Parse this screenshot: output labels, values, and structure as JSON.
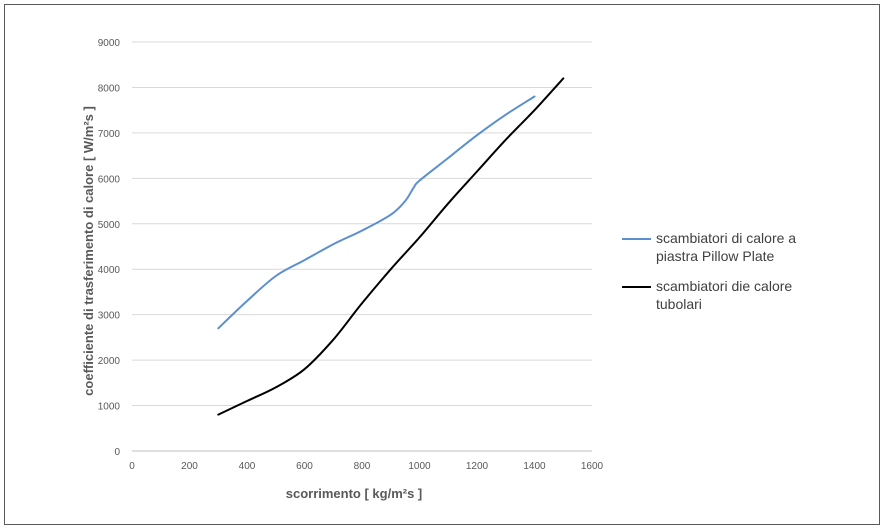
{
  "chart_data": {
    "type": "line",
    "title": "",
    "xlabel": "scorrimento [ kg/m²s ]",
    "ylabel": "coefficiente di trasferimento di calore [ W/m²s ]",
    "xlim": [
      0,
      1600
    ],
    "ylim": [
      0,
      9000
    ],
    "x_ticks": [
      0,
      200,
      400,
      600,
      800,
      1000,
      1200,
      1400,
      1600
    ],
    "y_ticks": [
      0,
      1000,
      2000,
      3000,
      4000,
      5000,
      6000,
      7000,
      8000,
      9000
    ],
    "grid": "horizontal",
    "legend_position": "right",
    "series": [
      {
        "name_lines": [
          "scambiatori di calore a",
          "piastra Pillow Plate"
        ],
        "color": "#5b8fd0",
        "x": [
          300,
          400,
          500,
          600,
          700,
          800,
          900,
          950,
          980,
          1000,
          1100,
          1200,
          1300,
          1400
        ],
        "y": [
          2700,
          3300,
          3850,
          4200,
          4550,
          4850,
          5200,
          5500,
          5800,
          5950,
          6450,
          6950,
          7400,
          7800
        ]
      },
      {
        "name_lines": [
          "scambiatori die calore",
          "tubolari"
        ],
        "color": "#000000",
        "x": [
          300,
          400,
          500,
          600,
          700,
          800,
          900,
          1000,
          1100,
          1200,
          1300,
          1400,
          1500
        ],
        "y": [
          800,
          1100,
          1400,
          1800,
          2450,
          3250,
          4000,
          4700,
          5450,
          6150,
          6850,
          7500,
          8200
        ]
      }
    ]
  }
}
